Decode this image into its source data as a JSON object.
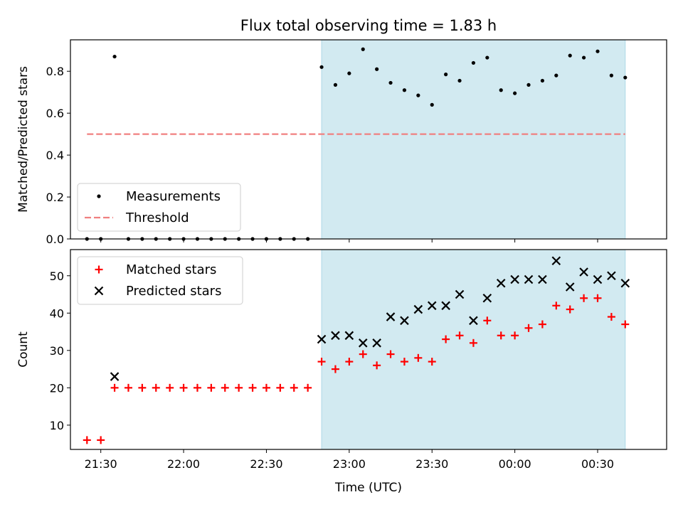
{
  "chart_data": [
    {
      "type": "scatter",
      "title": "Flux total observing time = 1.83 h",
      "xlabel": "",
      "ylabel": "Matched/Predicted stars",
      "ylim": [
        0,
        0.95
      ],
      "yticks": [
        0.0,
        0.2,
        0.4,
        0.6,
        0.8
      ],
      "ytick_labels": [
        "0.0",
        "0.2",
        "0.4",
        "0.6",
        "0.8"
      ],
      "shaded_interval": {
        "start": "22:50",
        "end": "00:40",
        "color": "#add8e6"
      },
      "series": [
        {
          "name": "Measurements",
          "marker": "dot",
          "color": "#000000",
          "points": [
            [
              "21:25",
              0.0
            ],
            [
              "21:30",
              0.0
            ],
            [
              "21:35",
              0.87
            ],
            [
              "21:40",
              0.0
            ],
            [
              "21:45",
              0.0
            ],
            [
              "21:50",
              0.0
            ],
            [
              "21:55",
              0.0
            ],
            [
              "22:00",
              0.0
            ],
            [
              "22:05",
              0.0
            ],
            [
              "22:10",
              0.0
            ],
            [
              "22:15",
              0.0
            ],
            [
              "22:20",
              0.0
            ],
            [
              "22:25",
              0.0
            ],
            [
              "22:30",
              0.0
            ],
            [
              "22:35",
              0.0
            ],
            [
              "22:40",
              0.0
            ],
            [
              "22:45",
              0.0
            ],
            [
              "22:50",
              0.82
            ],
            [
              "22:55",
              0.735
            ],
            [
              "23:00",
              0.79
            ],
            [
              "23:05",
              0.905
            ],
            [
              "23:10",
              0.81
            ],
            [
              "23:15",
              0.745
            ],
            [
              "23:20",
              0.71
            ],
            [
              "23:25",
              0.685
            ],
            [
              "23:30",
              0.64
            ],
            [
              "23:35",
              0.785
            ],
            [
              "23:40",
              0.755
            ],
            [
              "23:45",
              0.84
            ],
            [
              "23:50",
              0.865
            ],
            [
              "23:55",
              0.71
            ],
            [
              "00:00",
              0.695
            ],
            [
              "00:05",
              0.735
            ],
            [
              "00:10",
              0.755
            ],
            [
              "00:15",
              0.78
            ],
            [
              "00:20",
              0.875
            ],
            [
              "00:25",
              0.865
            ],
            [
              "00:30",
              0.895
            ],
            [
              "00:35",
              0.78
            ],
            [
              "00:40",
              0.77
            ]
          ]
        },
        {
          "name": "Threshold",
          "type": "line",
          "style": "dashed",
          "color": "#f08080",
          "points": [
            [
              "21:25",
              0.5
            ],
            [
              "00:40",
              0.5
            ]
          ]
        }
      ],
      "legend": {
        "placement": "lower-left"
      }
    },
    {
      "type": "scatter",
      "title": "",
      "xlabel": "Time (UTC)",
      "ylabel": "Count",
      "ylim": [
        3.5,
        57
      ],
      "yticks": [
        10,
        20,
        30,
        40,
        50
      ],
      "ytick_labels": [
        "10",
        "20",
        "30",
        "40",
        "50"
      ],
      "xlim": [
        "21:19",
        "00:55"
      ],
      "xticks": [
        "21:30",
        "22:00",
        "22:30",
        "23:00",
        "23:30",
        "00:00",
        "00:30"
      ],
      "shaded_interval": {
        "start": "22:50",
        "end": "00:40",
        "color": "#add8e6"
      },
      "series": [
        {
          "name": "Matched stars",
          "marker": "plus",
          "color": "#ff0000",
          "points": [
            [
              "21:25",
              6
            ],
            [
              "21:30",
              6
            ],
            [
              "21:35",
              20
            ],
            [
              "21:40",
              20
            ],
            [
              "21:45",
              20
            ],
            [
              "21:50",
              20
            ],
            [
              "21:55",
              20
            ],
            [
              "22:00",
              20
            ],
            [
              "22:05",
              20
            ],
            [
              "22:10",
              20
            ],
            [
              "22:15",
              20
            ],
            [
              "22:20",
              20
            ],
            [
              "22:25",
              20
            ],
            [
              "22:30",
              20
            ],
            [
              "22:35",
              20
            ],
            [
              "22:40",
              20
            ],
            [
              "22:45",
              20
            ],
            [
              "22:50",
              27
            ],
            [
              "22:55",
              25
            ],
            [
              "23:00",
              27
            ],
            [
              "23:05",
              29
            ],
            [
              "23:10",
              26
            ],
            [
              "23:15",
              29
            ],
            [
              "23:20",
              27
            ],
            [
              "23:25",
              28
            ],
            [
              "23:30",
              27
            ],
            [
              "23:35",
              33
            ],
            [
              "23:40",
              34
            ],
            [
              "23:45",
              32
            ],
            [
              "23:50",
              38
            ],
            [
              "23:55",
              34
            ],
            [
              "00:00",
              34
            ],
            [
              "00:05",
              36
            ],
            [
              "00:10",
              37
            ],
            [
              "00:15",
              42
            ],
            [
              "00:20",
              41
            ],
            [
              "00:25",
              44
            ],
            [
              "00:30",
              44
            ],
            [
              "00:35",
              39
            ],
            [
              "00:40",
              37
            ]
          ]
        },
        {
          "name": "Predicted stars",
          "marker": "x",
          "color": "#000000",
          "points": [
            [
              "21:35",
              23
            ],
            [
              "22:50",
              33
            ],
            [
              "22:55",
              34
            ],
            [
              "23:00",
              34
            ],
            [
              "23:05",
              32
            ],
            [
              "23:10",
              32
            ],
            [
              "23:15",
              39
            ],
            [
              "23:20",
              38
            ],
            [
              "23:25",
              41
            ],
            [
              "23:30",
              42
            ],
            [
              "23:35",
              42
            ],
            [
              "23:40",
              45
            ],
            [
              "23:45",
              38
            ],
            [
              "23:50",
              44
            ],
            [
              "23:55",
              48
            ],
            [
              "00:00",
              49
            ],
            [
              "00:05",
              49
            ],
            [
              "00:10",
              49
            ],
            [
              "00:15",
              54
            ],
            [
              "00:20",
              47
            ],
            [
              "00:25",
              51
            ],
            [
              "00:30",
              49
            ],
            [
              "00:35",
              50
            ],
            [
              "00:40",
              48
            ]
          ]
        }
      ],
      "legend": {
        "placement": "top-left"
      }
    }
  ]
}
